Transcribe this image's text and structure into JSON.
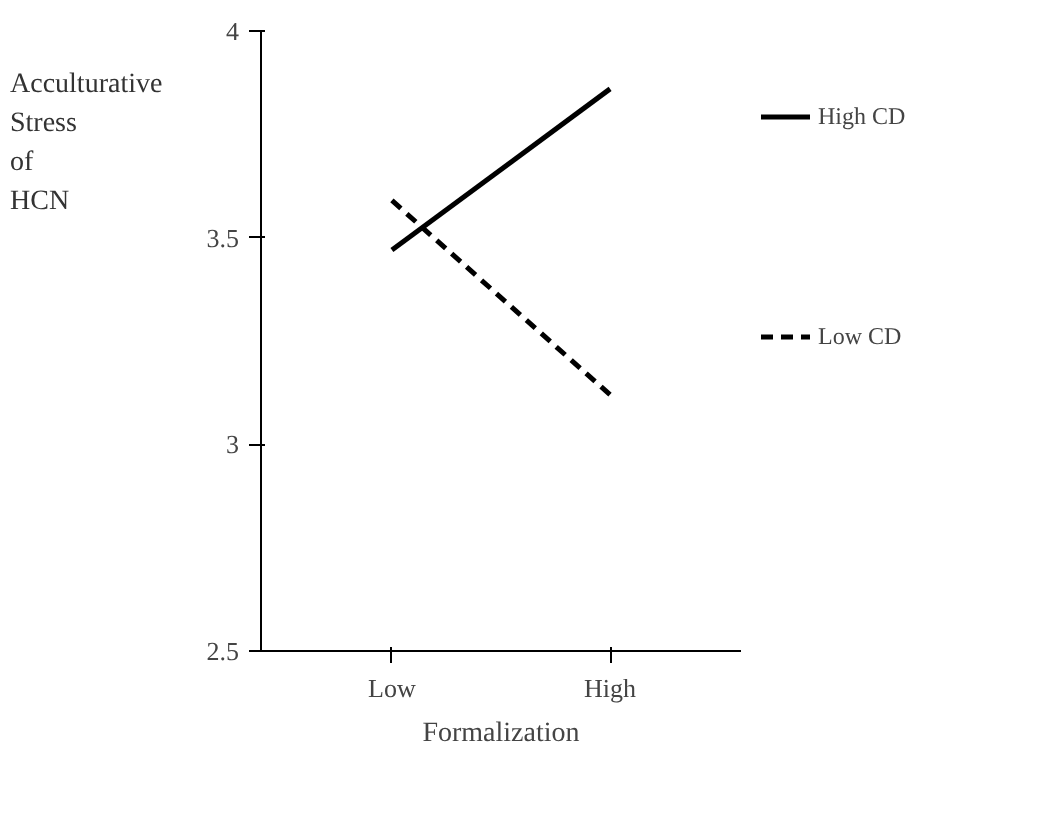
{
  "chart_data": {
    "type": "line",
    "xlabel": "Formalization",
    "ylabel": "Acculturative Stress of HCN",
    "categories": [
      "Low",
      "High"
    ],
    "series": [
      {
        "name": "High CD",
        "color": "#000000",
        "values": [
          3.47,
          3.86
        ],
        "line_style": "solid"
      },
      {
        "name": "Low CD",
        "color": "#000000",
        "values": [
          3.59,
          3.12
        ],
        "line_style": "dashed"
      }
    ],
    "ylim": [
      2.5,
      4
    ],
    "yticks": [
      2.5,
      3,
      3.5,
      4
    ],
    "legend": "right",
    "marker": "none"
  }
}
